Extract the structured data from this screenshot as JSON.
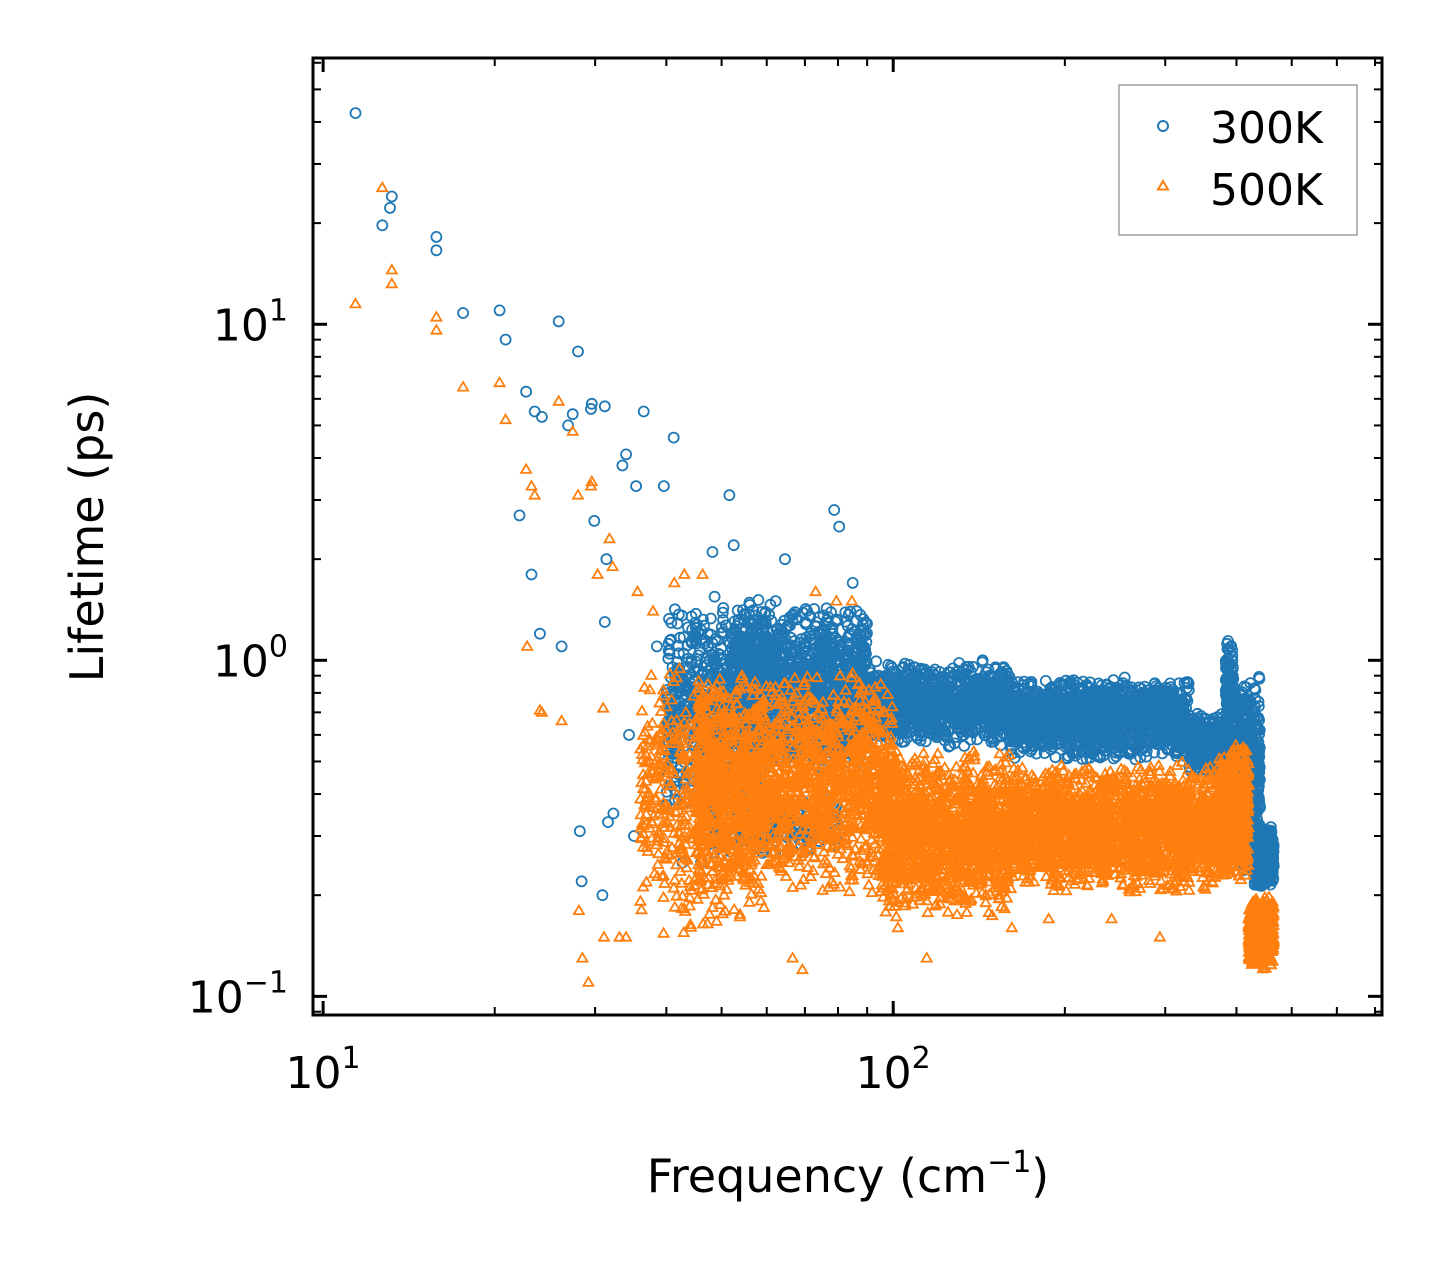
{
  "chart_data": {
    "type": "scatter",
    "xscale": "log",
    "yscale": "log",
    "xlabel": "Frequency (cm",
    "xlabel_sup": "−1",
    "xlabel_close": ")",
    "ylabel": "Lifetime (ps)",
    "xlim": [
      9.6,
      720
    ],
    "ylim": [
      0.088,
      62
    ],
    "x_ticks": [
      {
        "value": 10,
        "base": "10",
        "exp": "1"
      },
      {
        "value": 100,
        "base": "10",
        "exp": "2"
      }
    ],
    "y_ticks": [
      {
        "value": 0.1,
        "base": "10",
        "exp": "−1"
      },
      {
        "value": 1,
        "base": "10",
        "exp": "0"
      },
      {
        "value": 10,
        "base": "10",
        "exp": "1"
      }
    ],
    "legend_position": "top-right",
    "series": [
      {
        "name": "300K",
        "color": "#1f77b4",
        "marker": "circle",
        "x": [
          11.4,
          12.7,
          13.1,
          13.2,
          15.8,
          15.8,
          17.6,
          20.4,
          20.9,
          22.1,
          22.7,
          23.2,
          23.5,
          24.0,
          24.2,
          25.9,
          26.2,
          26.9,
          27.4,
          28.0,
          28.2,
          28.4,
          29.5,
          29.6,
          29.9,
          30.9,
          31.2,
          31.2,
          31.4,
          31.6,
          32.3,
          33.5,
          34.0,
          34.4,
          35.1,
          35.4,
          36.5,
          38.5,
          38.9,
          39.6,
          41.2,
          42.7,
          46.0,
          46.6,
          48.2,
          48.4,
          51.6,
          52.5,
          62.2,
          64.6,
          68.0,
          78.8,
          80.4,
          84.9,
          86.3,
          94.2,
          112.0,
          122.9,
          143.5,
          152.3,
          167.0,
          196.6,
          209.1,
          235.9,
          252.1,
          271.3,
          290.0,
          314.4,
          353.1,
          368.0,
          385.2,
          398.5,
          416.8
        ],
        "y": [
          42.5,
          19.7,
          22.2,
          24.0,
          16.6,
          18.2,
          10.8,
          11.0,
          9.0,
          2.7,
          6.3,
          1.8,
          5.5,
          1.2,
          5.3,
          10.2,
          1.1,
          5.0,
          5.4,
          8.3,
          0.31,
          0.22,
          5.6,
          5.8,
          2.6,
          0.2,
          1.3,
          5.7,
          2.0,
          0.33,
          0.35,
          3.8,
          4.1,
          0.6,
          0.3,
          3.3,
          5.5,
          1.1,
          0.59,
          3.3,
          4.6,
          0.25,
          0.25,
          0.38,
          2.1,
          0.76,
          3.1,
          2.2,
          1.5,
          2.0,
          0.35,
          2.8,
          2.5,
          1.7,
          1.4,
          0.9,
          0.88,
          0.74,
          1.0,
          0.84,
          0.72,
          0.84,
          0.72,
          0.79,
          0.7,
          0.68,
          0.62,
          0.54,
          0.67,
          0.52,
          1.12,
          0.48,
          0.32
        ],
        "clusters": [
          {
            "x": [
              40,
              60
            ],
            "y": [
              0.35,
              1.6
            ],
            "n": 700
          },
          {
            "x": [
              52,
              90
            ],
            "y": [
              0.45,
              1.5
            ],
            "n": 1300
          },
          {
            "x": [
              90,
              160
            ],
            "y": [
              0.55,
              1.0
            ],
            "n": 1000
          },
          {
            "x": [
              160,
              330
            ],
            "y": [
              0.5,
              0.9
            ],
            "n": 1500
          },
          {
            "x": [
              330,
              385
            ],
            "y": [
              0.45,
              0.7
            ],
            "n": 400
          },
          {
            "x": [
              383,
              395
            ],
            "y": [
              0.55,
              1.2
            ],
            "n": 150
          },
          {
            "x": [
              395,
              440
            ],
            "y": [
              0.22,
              0.9
            ],
            "n": 600
          },
          {
            "x": [
              430,
              465
            ],
            "y": [
              0.21,
              0.32
            ],
            "n": 500
          },
          {
            "x": [
              48,
              80
            ],
            "y": [
              0.26,
              0.4
            ],
            "n": 200
          }
        ]
      },
      {
        "name": "500K",
        "color": "#ff7f0e",
        "marker": "triangle",
        "x": [
          11.4,
          12.7,
          13.2,
          13.2,
          15.8,
          15.8,
          17.6,
          20.4,
          20.9,
          22.7,
          22.8,
          23.2,
          23.5,
          24.0,
          24.2,
          25.9,
          26.2,
          27.4,
          28.0,
          28.1,
          28.5,
          29.2,
          29.5,
          29.6,
          30.3,
          31.0,
          31.1,
          31.8,
          32.2,
          33.1,
          34.0,
          35.6,
          37.9,
          38.4,
          41.3,
          43.0,
          46.3,
          47.7,
          57.6,
          63.9,
          66.6,
          69.3,
          73.1,
          79.5,
          84.6,
          101.9,
          107.5,
          114.5,
          145.3,
          161.4,
          187.4,
          241.6,
          293.6
        ],
        "y": [
          11.5,
          25.5,
          14.5,
          13.2,
          10.5,
          9.6,
          6.5,
          6.7,
          5.2,
          3.7,
          1.1,
          3.3,
          3.1,
          0.71,
          0.7,
          5.9,
          0.66,
          4.8,
          3.1,
          0.18,
          0.13,
          0.11,
          3.3,
          3.4,
          1.8,
          0.72,
          0.15,
          2.3,
          1.9,
          0.15,
          0.15,
          1.6,
          1.4,
          0.46,
          1.7,
          1.8,
          1.8,
          0.32,
          0.28,
          0.25,
          0.13,
          0.12,
          1.6,
          1.5,
          1.5,
          0.16,
          0.23,
          0.13,
          0.19,
          0.16,
          0.17,
          0.17,
          0.15
        ],
        "clusters": [
          {
            "x": [
              36,
              60
            ],
            "y": [
              0.15,
              1.0
            ],
            "n": 600
          },
          {
            "x": [
              45,
              100
            ],
            "y": [
              0.2,
              0.95
            ],
            "n": 1600
          },
          {
            "x": [
              95,
              160
            ],
            "y": [
              0.17,
              0.55
            ],
            "n": 1300
          },
          {
            "x": [
              160,
              370
            ],
            "y": [
              0.2,
              0.5
            ],
            "n": 2000
          },
          {
            "x": [
              370,
              392
            ],
            "y": [
              0.22,
              0.52
            ],
            "n": 300
          },
          {
            "x": [
              390,
              420
            ],
            "y": [
              0.22,
              0.6
            ],
            "n": 300
          },
          {
            "x": [
              420,
              465
            ],
            "y": [
              0.12,
              0.2
            ],
            "n": 500
          }
        ]
      }
    ]
  }
}
